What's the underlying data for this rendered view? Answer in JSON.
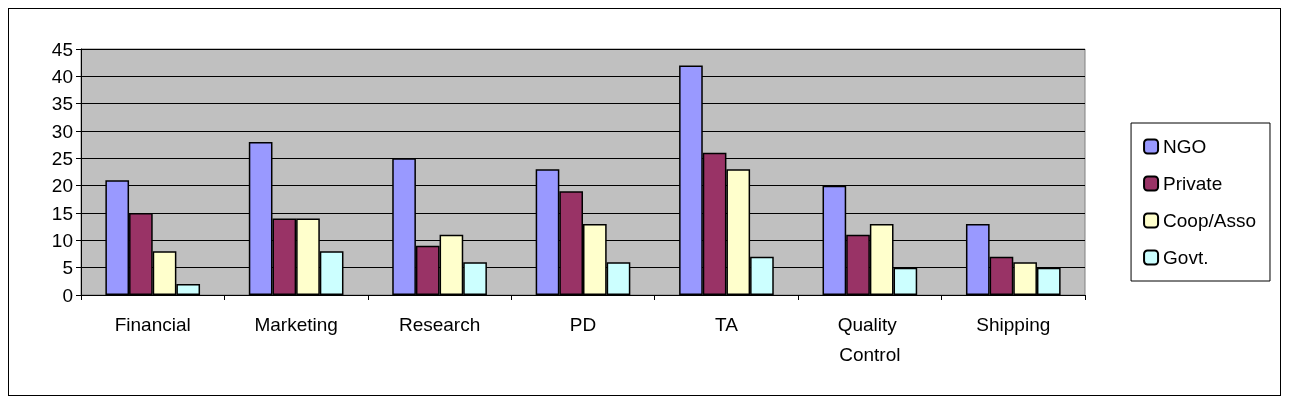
{
  "chart_data": {
    "type": "bar",
    "categories": [
      "Financial",
      "Marketing",
      "Research",
      "PD",
      "TA",
      "Quality Control",
      "Shipping"
    ],
    "series": [
      {
        "name": "NGO",
        "color": "#9999ff",
        "values": [
          21,
          28,
          25,
          23,
          42,
          20,
          13
        ]
      },
      {
        "name": "Private",
        "color": "#993366",
        "values": [
          15,
          14,
          9,
          19,
          26,
          11,
          7
        ]
      },
      {
        "name": "Coop/Asso",
        "color": "#ffffcc",
        "values": [
          8,
          14,
          11,
          13,
          23,
          13,
          6
        ]
      },
      {
        "name": "Govt.",
        "color": "#ccffff",
        "values": [
          2,
          8,
          6,
          6,
          7,
          5,
          5
        ]
      }
    ],
    "ylim": [
      0,
      45
    ],
    "yticks": [
      0,
      5,
      10,
      15,
      20,
      25,
      30,
      35,
      40,
      45
    ],
    "grid": "y",
    "legend": "right"
  }
}
